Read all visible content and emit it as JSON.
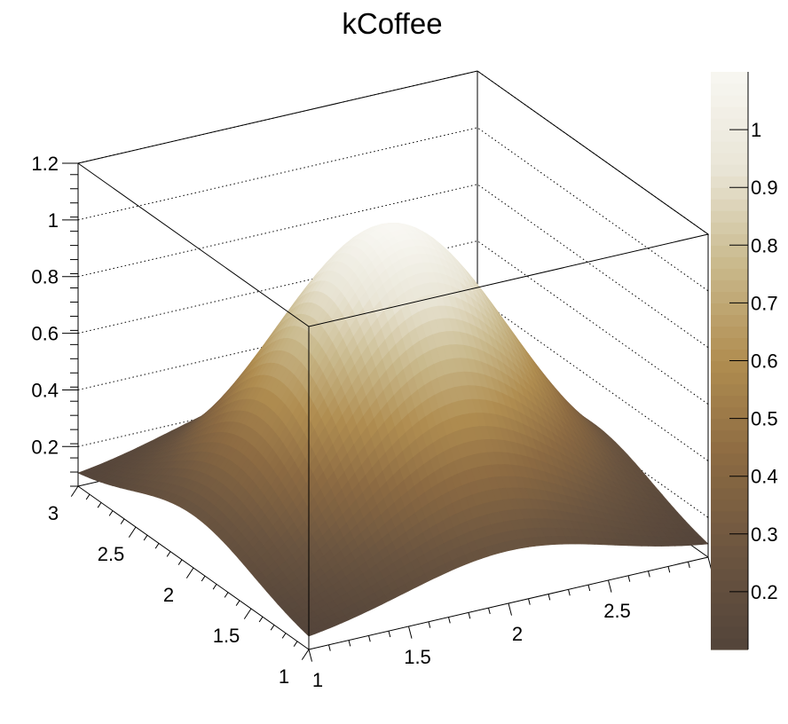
{
  "chart_data": {
    "type": "surface",
    "title": "kCoffee",
    "xlabel": "",
    "ylabel": "",
    "zlabel": "",
    "x_range": [
      1,
      3
    ],
    "y_range": [
      1,
      3
    ],
    "z_range": [
      0.06,
      1.2
    ],
    "x_ticks": [
      "1",
      "1.5",
      "2",
      "2.5",
      "3"
    ],
    "y_ticks": [
      "1",
      "1.5",
      "2",
      "2.5",
      "3"
    ],
    "z_ticks": [
      "0.2",
      "0.4",
      "0.6",
      "0.8",
      "1",
      "1.2"
    ],
    "z_tick_values": [
      0.2,
      0.4,
      0.6,
      0.8,
      1.0,
      1.2
    ],
    "surface": {
      "description": "Single smooth peak centered at (2, 2)",
      "peak": {
        "x": 2.0,
        "y": 2.0,
        "z": 1.1
      },
      "edge_min_z": 0.1,
      "corner_z": 0.1
    },
    "colorbar": {
      "range": [
        0.1,
        1.1
      ],
      "ticks": [
        "0.2",
        "0.3",
        "0.4",
        "0.5",
        "0.6",
        "0.7",
        "0.8",
        "0.9",
        "1"
      ],
      "tick_values": [
        0.2,
        0.3,
        0.4,
        0.5,
        0.6,
        0.7,
        0.8,
        0.9,
        1.0
      ],
      "palette_name": "kCoffee"
    },
    "grid": true,
    "legend": "none"
  },
  "palette": [
    "#53443a",
    "#6b5540",
    "#8c6a42",
    "#b08d50",
    "#c9b98c",
    "#e9e5d6",
    "#f8f7f2"
  ],
  "colors": {
    "axis": "#000000",
    "background": "#ffffff"
  }
}
